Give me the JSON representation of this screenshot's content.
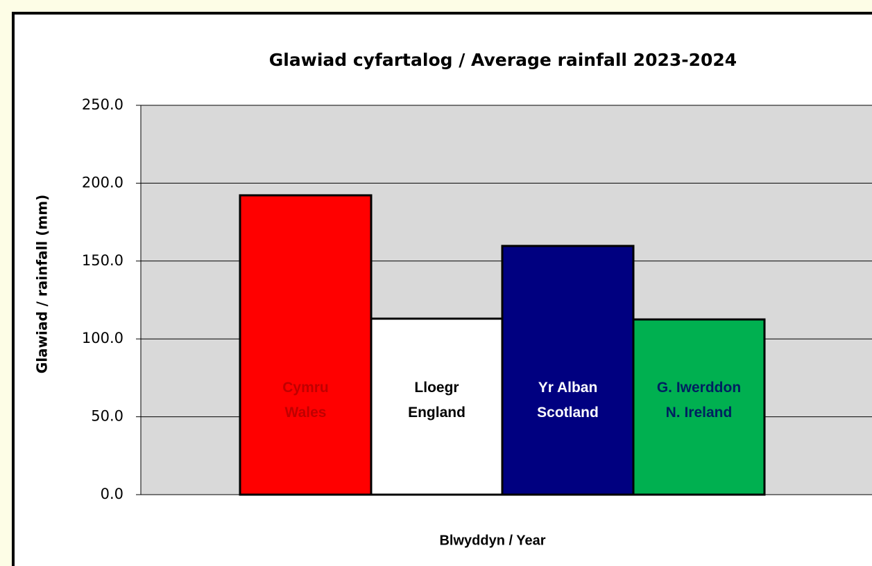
{
  "chart_data": {
    "type": "bar",
    "title": "Glawiad cyfartalog / Average rainfall 2023-2024",
    "x_label": "Blwyddyn / Year",
    "y_label": "Glawiad /  rainfall (mm)",
    "categories": [
      [
        "Cymru",
        "Wales"
      ],
      [
        "Lloegr",
        "England"
      ],
      [
        "Yr Alban",
        "Scotland"
      ],
      [
        "G. Iwerddon",
        "N. Ireland"
      ]
    ],
    "values": [
      192.2,
      113.0,
      159.7,
      112.5
    ],
    "colors": [
      "#ff0000",
      "#ffffff",
      "#000080",
      "#00b050"
    ],
    "label_colors": [
      "#c00000",
      "#000000",
      "#ffffff",
      "#002060"
    ],
    "ylim": [
      0,
      250
    ],
    "yticks": [
      {
        "value": 0,
        "label": "0.0"
      },
      {
        "value": 50,
        "label": "50.0"
      },
      {
        "value": 100,
        "label": "100.0"
      },
      {
        "value": 150,
        "label": "150.0"
      },
      {
        "value": 200,
        "label": "200.0"
      },
      {
        "value": 250,
        "label": "250.0"
      }
    ],
    "grid": true
  }
}
